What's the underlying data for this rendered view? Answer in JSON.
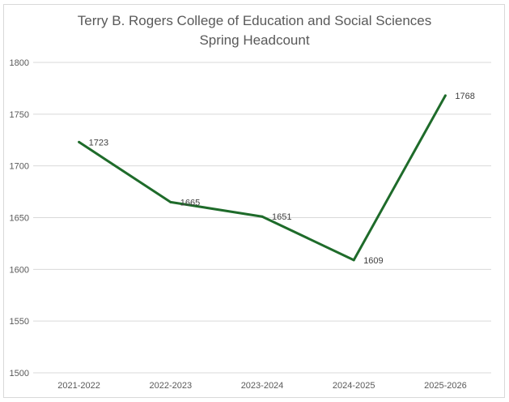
{
  "chart_data": {
    "type": "line",
    "title": "Terry B. Rogers College of Education and Social Sciences",
    "subtitle": "Spring Headcount",
    "categories": [
      "2021-2022",
      "2022-2023",
      "2023-2024",
      "2024-2025",
      "2025-2026"
    ],
    "series": [
      {
        "values": [
          1723,
          1665,
          1651,
          1609,
          1768
        ],
        "color": "#1e6b2a"
      }
    ],
    "ylim": [
      1500,
      1800
    ],
    "yticks": [
      1500,
      1550,
      1600,
      1650,
      1700,
      1750,
      1800
    ],
    "grid": true,
    "legend": "none",
    "data_labels": true
  }
}
